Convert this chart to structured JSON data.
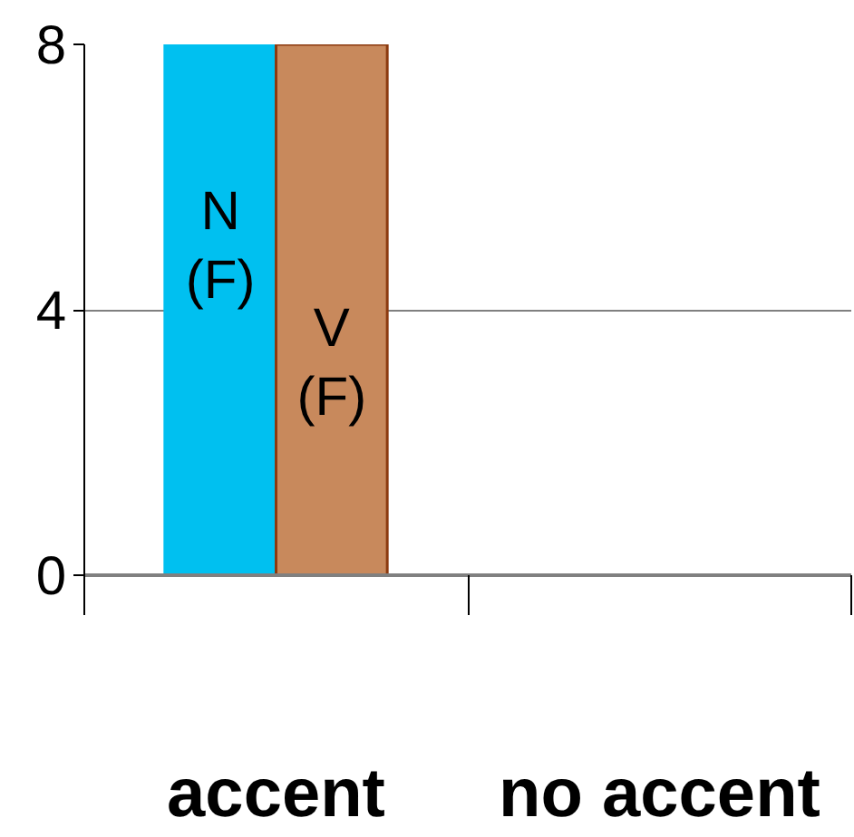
{
  "chart_data": {
    "type": "bar",
    "categories": [
      "accent",
      "no accent"
    ],
    "series": [
      {
        "name": "N\n(F)",
        "color": "#00c0f0",
        "values": [
          8,
          0
        ]
      },
      {
        "name": "V\n(F)",
        "color": "#c8895c",
        "values": [
          8,
          0
        ]
      }
    ],
    "ylim": [
      0,
      8
    ],
    "yticks": [
      0,
      4,
      8
    ],
    "grid": "y"
  }
}
